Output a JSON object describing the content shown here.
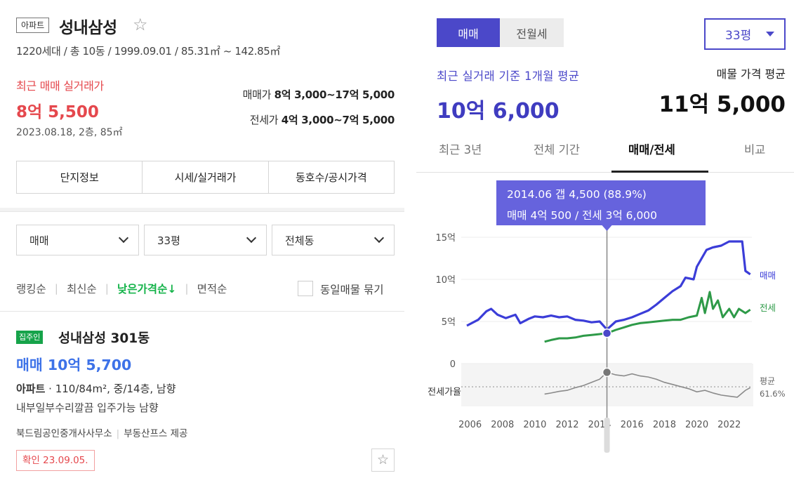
{
  "listing_panel": {
    "type_badge": "아파트",
    "title": "성내삼성",
    "star_icon": "star-outline-icon",
    "info": "1220세대 / 총 10동 / 1999.09.01 / 85.31㎡ ~ 142.85㎡",
    "recent_label": "최근 매매 실거래가",
    "recent_price": "8억 5,500",
    "recent_meta": "2023.08.18, 2층, 85㎡",
    "sale_range_label": "매매가",
    "sale_range_value": "8억 3,000~17억 5,000",
    "jeonse_range_label": "전세가",
    "jeonse_range_value": "4억 3,000~7억 5,000",
    "info_tabs": [
      "단지정보",
      "시세/실거래가",
      "동호수/공시가격"
    ],
    "filters": {
      "trade_type": "매매",
      "size": "33평",
      "dong": "전체동"
    },
    "sort": {
      "items": [
        "랭킹순",
        "최신순",
        "낮은가격순↓",
        "면적순"
      ],
      "active_index": 2,
      "group_label": "동일매물 묶기"
    },
    "listing": {
      "owner_badge": "집주인",
      "title": "성내삼성 301동",
      "price": "매매 10억 5,700",
      "spec_type": "아파트",
      "spec_rest": " · 110/84m², 중/14층, 남향",
      "desc": "내부일부수리깔끔 입주가능 남향",
      "agent": "북드림공인중개사사무소",
      "provider": "부동산프스 제공",
      "confirm": "확인 23.09.05."
    }
  },
  "chart_panel": {
    "segments": [
      "매매",
      "전월세"
    ],
    "active_segment": 0,
    "size_select": "33평",
    "avg_label": "최근 실거래 기준 1개월 평균",
    "avg_value": "10억 6,000",
    "listing_avg_label": "매물 가격 평균",
    "listing_avg_value": "11억 5,000",
    "period_tabs": [
      "최근 3년",
      "전체 기간",
      "매매/전세",
      "비교"
    ],
    "active_period": 2,
    "tooltip_line1": "2014.06  갭 4,500 (88.9%)",
    "tooltip_line2": "매매 4억 500 / 전세 3억 6,000",
    "ratio_label": "전세가율",
    "avg_ratio_label": "평균",
    "avg_ratio_value": "61.6%",
    "colors": {
      "sale": "#3b3dd8",
      "jeonse": "#2e9a48",
      "ratio": "#8a8a8a",
      "accent": "#4b48c9"
    }
  },
  "chart_data": {
    "type": "line",
    "ylabel": "",
    "ylim": [
      0,
      15
    ],
    "y_unit": "억",
    "y_ticks": [
      "15억",
      "10억",
      "5억",
      "0"
    ],
    "y_tick_values": [
      15,
      10,
      5,
      0
    ],
    "x_ticks": [
      "2006",
      "2008",
      "2010",
      "2012",
      "2014",
      "2016",
      "2018",
      "2020",
      "2022"
    ],
    "x_tick_values": [
      2006,
      2008,
      2010,
      2012,
      2014,
      2016,
      2018,
      2020,
      2022
    ],
    "xlim": [
      2005.8,
      2023.4
    ],
    "highlight": {
      "x": 2014.45,
      "sale": 4.05,
      "jeonse": 3.6,
      "ratio": 88.9
    },
    "series": [
      {
        "name": "매매",
        "x": [
          2005.8,
          2006.5,
          2007.0,
          2007.3,
          2007.7,
          2008.2,
          2008.8,
          2009.1,
          2009.6,
          2010.0,
          2010.5,
          2011.0,
          2011.5,
          2012.0,
          2012.5,
          2013.0,
          2013.5,
          2014.0,
          2014.45,
          2015.0,
          2015.5,
          2016.0,
          2016.5,
          2017.0,
          2017.5,
          2018.0,
          2018.5,
          2019.0,
          2019.3,
          2019.8,
          2020.0,
          2020.3,
          2020.6,
          2021.0,
          2021.5,
          2022.0,
          2022.4,
          2022.8,
          2023.0,
          2023.3
        ],
        "values": [
          4.5,
          5.2,
          6.2,
          6.5,
          5.8,
          5.4,
          5.8,
          4.8,
          5.3,
          5.6,
          5.5,
          5.7,
          5.5,
          5.6,
          5.2,
          5.1,
          4.9,
          5.0,
          4.05,
          5.0,
          5.2,
          5.5,
          5.9,
          6.3,
          7.0,
          7.8,
          8.6,
          9.2,
          10.2,
          10.0,
          11.5,
          12.5,
          13.5,
          13.8,
          14.0,
          14.5,
          14.5,
          14.5,
          11.0,
          10.6
        ]
      },
      {
        "name": "전세",
        "x": [
          2010.6,
          2011.0,
          2011.5,
          2012.0,
          2012.5,
          2013.0,
          2013.5,
          2014.0,
          2014.45,
          2015.0,
          2015.5,
          2016.0,
          2016.5,
          2017.0,
          2017.5,
          2018.0,
          2018.5,
          2019.0,
          2019.5,
          2020.0,
          2020.3,
          2020.5,
          2020.8,
          2021.0,
          2021.3,
          2021.6,
          2022.0,
          2022.3,
          2022.6,
          2023.0,
          2023.3
        ],
        "values": [
          2.6,
          2.8,
          3.0,
          3.0,
          3.1,
          3.3,
          3.4,
          3.5,
          3.6,
          4.0,
          4.3,
          4.6,
          4.8,
          4.9,
          5.0,
          5.1,
          5.2,
          5.2,
          5.5,
          5.7,
          7.8,
          6.0,
          8.5,
          6.5,
          7.5,
          5.5,
          6.5,
          5.5,
          6.5,
          6.0,
          6.4
        ]
      },
      {
        "name": "전세가율",
        "x": [
          2010.6,
          2011.0,
          2011.5,
          2012.0,
          2012.5,
          2013.0,
          2013.5,
          2014.0,
          2014.45,
          2015.0,
          2015.5,
          2016.0,
          2016.5,
          2017.0,
          2017.5,
          2018.0,
          2018.5,
          2019.0,
          2019.5,
          2020.0,
          2020.5,
          2021.0,
          2021.5,
          2022.0,
          2022.5,
          2023.0,
          2023.3
        ],
        "values": [
          48,
          50,
          53,
          55,
          60,
          64,
          70,
          76,
          88.9,
          84,
          82,
          86,
          82,
          80,
          76,
          70,
          66,
          62,
          58,
          52,
          55,
          50,
          46,
          44,
          42,
          55,
          60
        ]
      }
    ],
    "ratio_average": 61.6
  }
}
